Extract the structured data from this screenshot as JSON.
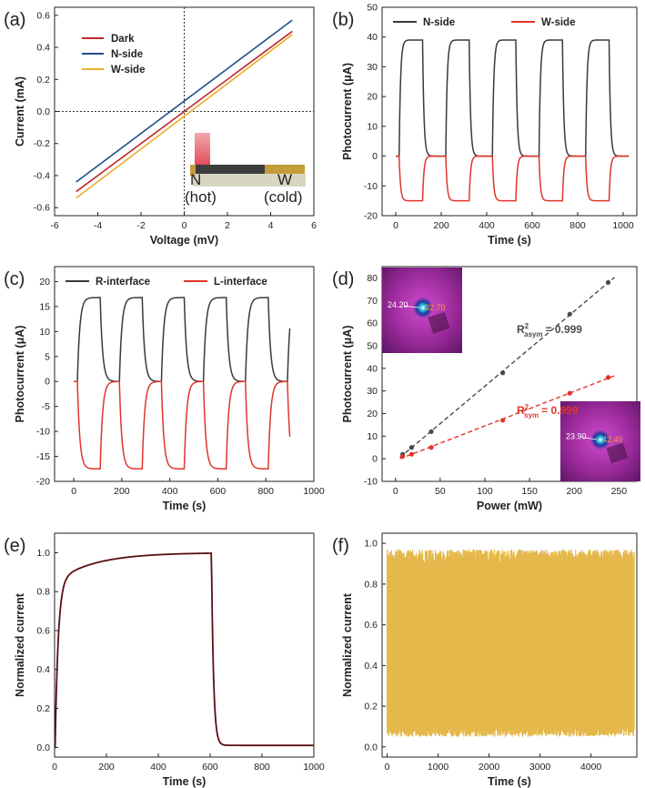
{
  "chart_data": [
    {
      "panel": "(a)",
      "type": "line",
      "xlabel": "Voltage (mV)",
      "ylabel": "Current (mA)",
      "xlim": [
        -6,
        6
      ],
      "ylim": [
        -0.65,
        0.65
      ],
      "xticks": [
        "-6",
        "-4",
        "-2",
        "0",
        "2",
        "4",
        "6"
      ],
      "yticks": [
        "-0.6",
        "-0.4",
        "-0.2",
        "0.0",
        "0.2",
        "0.4",
        "0.6"
      ],
      "series": [
        {
          "name": "Dark",
          "color": "#c0282e",
          "x": [
            -5,
            5
          ],
          "y": [
            -0.5,
            0.5
          ]
        },
        {
          "name": "N-side",
          "color": "#1f4e8c",
          "x": [
            -5,
            5
          ],
          "y": [
            -0.44,
            0.57
          ]
        },
        {
          "name": "W-side",
          "color": "#e8b028",
          "x": [
            -5,
            5
          ],
          "y": [
            -0.54,
            0.48
          ]
        }
      ],
      "inset_labels": {
        "left": "N",
        "left_sub": "(hot)",
        "right": "W",
        "right_sub": "(cold)"
      },
      "legend": "top-left"
    },
    {
      "panel": "(b)",
      "type": "line",
      "xlabel": "Time (s)",
      "ylabel": "Photocurrent (μA)",
      "xlim": [
        -60,
        1060
      ],
      "ylim": [
        -20,
        50
      ],
      "xticks": [
        "0",
        "200",
        "400",
        "600",
        "800",
        "1000"
      ],
      "yticks": [
        "-20",
        "-10",
        "0",
        "10",
        "20",
        "30",
        "40",
        "50"
      ],
      "series": [
        {
          "name": "N-side",
          "color": "#3a3a3a",
          "level": 39,
          "period": 205,
          "on_start": 15,
          "on_duration": 103,
          "t_end": 1025
        },
        {
          "name": "W-side",
          "color": "#e0352b",
          "level": -15,
          "period": 205,
          "on_start": 15,
          "on_duration": 103,
          "t_end": 1025
        }
      ],
      "legend": "top"
    },
    {
      "panel": "(c)",
      "type": "line",
      "xlabel": "Time (s)",
      "ylabel": "Photocurrent (μA)",
      "xlim": [
        -80,
        1000
      ],
      "ylim": [
        -20,
        23
      ],
      "xticks": [
        "0",
        "200",
        "400",
        "600",
        "800",
        "1000"
      ],
      "yticks": [
        "-20",
        "-15",
        "-10",
        "-5",
        "0",
        "5",
        "10",
        "15",
        "20"
      ],
      "series": [
        {
          "name": "R-interface",
          "color": "#3a3a3a",
          "level": 16.8,
          "period": 175,
          "on_start": 15,
          "on_duration": 95,
          "t_end": 900
        },
        {
          "name": "L-interface",
          "color": "#e0352b",
          "level": -17.5,
          "period": 175,
          "on_start": 15,
          "on_duration": 95,
          "t_end": 900
        }
      ],
      "legend": "top"
    },
    {
      "panel": "(d)",
      "type": "scatter",
      "xlabel": "Power (mW)",
      "ylabel": "Photocurrent (μA)",
      "xlim": [
        -15,
        270
      ],
      "ylim": [
        -10,
        85
      ],
      "xticks": [
        "0",
        "50",
        "100",
        "150",
        "200",
        "250"
      ],
      "yticks": [
        "-10",
        "0",
        "10",
        "20",
        "30",
        "40",
        "50",
        "60",
        "70",
        "80"
      ],
      "series": [
        {
          "name": "asym",
          "color": "#4a4a4a",
          "x": [
            8,
            18,
            40,
            120,
            195,
            238
          ],
          "y": [
            2,
            5,
            12,
            38,
            64,
            78
          ]
        },
        {
          "name": "sym",
          "color": "#e0352b",
          "x": [
            8,
            18,
            40,
            120,
            195,
            238
          ],
          "y": [
            1,
            2,
            5,
            17,
            29,
            36
          ]
        }
      ],
      "annotations": {
        "asym_base": "R",
        "asym_sup": "2",
        "asym_sub": "asym",
        "asym_val": "= 0.999",
        "sym_base": "R",
        "sym_sup": "2",
        "sym_sub": "sym",
        "sym_val": "= 0.999"
      },
      "inset_labels": {
        "top_left_value": "24.20",
        "top_hot_value": "32.70",
        "bottom_left_value": "23.90",
        "bottom_hot_value": "42.40"
      }
    },
    {
      "panel": "(e)",
      "type": "line",
      "xlabel": "Time (s)",
      "ylabel": "Normalized current",
      "xlim": [
        0,
        1000
      ],
      "ylim": [
        -0.05,
        1.1
      ],
      "xticks": [
        "0",
        "200",
        "400",
        "600",
        "800",
        "1000"
      ],
      "yticks": [
        "0.0",
        "0.2",
        "0.4",
        "0.6",
        "0.8",
        "1.0"
      ],
      "series": [
        {
          "name": "",
          "color": "#5a0f12",
          "on": [
            2,
            605
          ],
          "rise_tau": 12,
          "decay_tau": 8,
          "plateau": 1.0
        }
      ]
    },
    {
      "panel": "(f)",
      "type": "line",
      "xlabel": "Time (s)",
      "ylabel": "Normalized current",
      "xlim": [
        -100,
        4900
      ],
      "ylim": [
        -0.05,
        1.05
      ],
      "xticks": [
        "0",
        "1000",
        "2000",
        "3000",
        "4000"
      ],
      "yticks": [
        "0.0",
        "0.2",
        "0.4",
        "0.6",
        "0.8",
        "1.0"
      ],
      "series": [
        {
          "name": "",
          "color": "#e4b84a",
          "min": 0.05,
          "max": 0.97,
          "t_end": 4850
        }
      ]
    }
  ]
}
